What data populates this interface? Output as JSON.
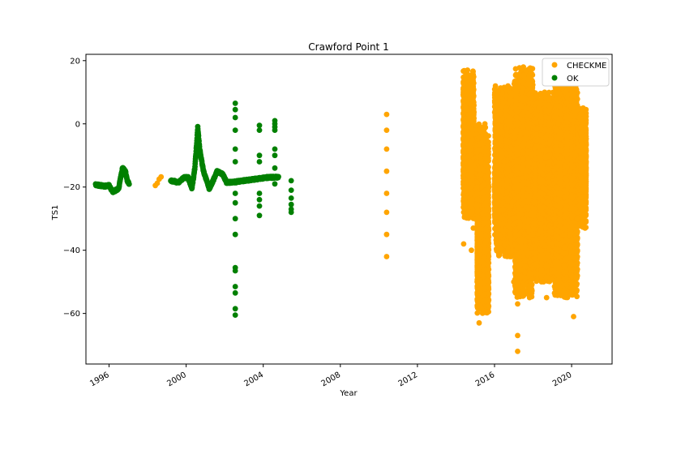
{
  "chart_data": {
    "type": "scatter",
    "title": "Crawford Point 1",
    "xlabel": "Year",
    "ylabel": "TS1",
    "xlim": [
      1994.8,
      2022.1
    ],
    "ylim": [
      -76,
      22
    ],
    "x_ticks": [
      1996,
      2000,
      2004,
      2008,
      2012,
      2016,
      2020
    ],
    "y_ticks": [
      20,
      0,
      -20,
      -40,
      -60
    ],
    "grid": false,
    "legend_position": "top-right",
    "series": [
      {
        "name": "CHECKME",
        "color": "#ffa500",
        "points": [
          [
            1998.4,
            -19.5
          ],
          [
            1998.5,
            -18.8
          ],
          [
            1998.6,
            -17.5
          ],
          [
            1998.7,
            -16.8
          ],
          [
            2010.4,
            3
          ],
          [
            2010.4,
            -2
          ],
          [
            2010.4,
            -8
          ],
          [
            2010.4,
            -15
          ],
          [
            2010.4,
            -22
          ],
          [
            2010.4,
            -28
          ],
          [
            2010.4,
            -35
          ],
          [
            2010.4,
            -42
          ],
          [
            2014.4,
            -38
          ],
          [
            2014.4,
            -28
          ],
          [
            2014.4,
            -15
          ],
          [
            2014.5,
            15
          ],
          [
            2014.5,
            5
          ],
          [
            2014.6,
            17
          ],
          [
            2014.6,
            -5
          ],
          [
            2014.7,
            12
          ],
          [
            2014.7,
            -25
          ],
          [
            2014.8,
            8
          ],
          [
            2014.8,
            -40
          ],
          [
            2014.9,
            -33
          ],
          [
            2014.9,
            0
          ],
          [
            2015.1,
            -50
          ],
          [
            2015.2,
            -63
          ],
          [
            2015.2,
            -35
          ],
          [
            2015.3,
            -12
          ],
          [
            2015.4,
            -5
          ],
          [
            2015.4,
            -48
          ],
          [
            2015.5,
            0
          ],
          [
            2015.5,
            -30
          ],
          [
            2015.6,
            -40
          ],
          [
            2015.7,
            -20
          ],
          [
            2016.0,
            -20
          ],
          [
            2016.2,
            -32
          ],
          [
            2016.3,
            -5
          ],
          [
            2016.4,
            -30
          ],
          [
            2016.5,
            -12
          ],
          [
            2016.6,
            5
          ],
          [
            2016.6,
            -38
          ],
          [
            2016.7,
            12
          ],
          [
            2016.8,
            -42
          ],
          [
            2016.9,
            -25
          ],
          [
            2017.0,
            -50
          ],
          [
            2017.1,
            -35
          ],
          [
            2017.2,
            -57
          ],
          [
            2017.2,
            -67
          ],
          [
            2017.2,
            -72
          ],
          [
            2017.3,
            -5
          ],
          [
            2017.3,
            -45
          ],
          [
            2017.4,
            10
          ],
          [
            2017.5,
            18
          ],
          [
            2017.5,
            -30
          ],
          [
            2017.6,
            5
          ],
          [
            2017.7,
            -40
          ],
          [
            2017.8,
            -48
          ],
          [
            2017.9,
            -10
          ],
          [
            2018.0,
            -35
          ],
          [
            2018.1,
            -20
          ],
          [
            2018.2,
            -45
          ],
          [
            2018.3,
            5
          ],
          [
            2018.4,
            -30
          ],
          [
            2018.5,
            -38
          ],
          [
            2018.6,
            10
          ],
          [
            2018.7,
            -55
          ],
          [
            2018.7,
            -25
          ],
          [
            2018.8,
            -45
          ],
          [
            2018.9,
            -5
          ],
          [
            2019.0,
            -38
          ],
          [
            2019.1,
            -30
          ],
          [
            2019.2,
            -20
          ],
          [
            2019.3,
            0
          ],
          [
            2019.4,
            12
          ],
          [
            2019.5,
            17
          ],
          [
            2019.5,
            -25
          ],
          [
            2019.6,
            -41
          ],
          [
            2019.7,
            10
          ],
          [
            2019.8,
            -20
          ],
          [
            2019.9,
            -35
          ],
          [
            2020.0,
            5
          ],
          [
            2020.1,
            -61
          ],
          [
            2020.2,
            -10
          ],
          [
            2020.3,
            -30
          ],
          [
            2020.4,
            2
          ],
          [
            2020.5,
            -25
          ],
          [
            2020.6,
            5
          ],
          [
            2020.7,
            -33
          ]
        ],
        "bands": [
          [
            2014.38,
            2014.95,
            -30,
            17
          ],
          [
            2015.1,
            2015.7,
            -60,
            0
          ],
          [
            2016.0,
            2016.98,
            -42,
            12
          ],
          [
            2017.0,
            2018.0,
            -55,
            18
          ],
          [
            2018.0,
            2019.1,
            -50,
            10
          ],
          [
            2019.1,
            2020.3,
            -55,
            17
          ],
          [
            2020.3,
            2020.75,
            -33,
            5
          ]
        ]
      },
      {
        "name": "OK",
        "color": "#008000",
        "points": [
          [
            2002.55,
            6.5
          ],
          [
            2002.55,
            4.5
          ],
          [
            2002.55,
            2
          ],
          [
            2002.55,
            -2
          ],
          [
            2002.55,
            -8
          ],
          [
            2002.55,
            -12
          ],
          [
            2002.55,
            -22
          ],
          [
            2002.55,
            -25
          ],
          [
            2002.55,
            -30
          ],
          [
            2002.55,
            -35
          ],
          [
            2002.55,
            -45.5
          ],
          [
            2002.55,
            -46.5
          ],
          [
            2002.55,
            -51.5
          ],
          [
            2002.55,
            -53.5
          ],
          [
            2002.55,
            -58.5
          ],
          [
            2002.55,
            -60.5
          ],
          [
            2003.8,
            -0.5
          ],
          [
            2003.8,
            -2
          ],
          [
            2003.8,
            -10
          ],
          [
            2003.8,
            -12
          ],
          [
            2003.8,
            -22
          ],
          [
            2003.8,
            -24
          ],
          [
            2003.8,
            -26
          ],
          [
            2003.8,
            -29
          ],
          [
            2004.6,
            1
          ],
          [
            2004.6,
            0
          ],
          [
            2004.6,
            -1
          ],
          [
            2004.6,
            -2
          ],
          [
            2004.6,
            -8
          ],
          [
            2004.6,
            -10
          ],
          [
            2004.6,
            -14
          ],
          [
            2004.6,
            -19
          ],
          [
            2005.45,
            -18
          ],
          [
            2005.45,
            -21
          ],
          [
            2005.45,
            -23.5
          ],
          [
            2005.45,
            -25.5
          ],
          [
            2005.45,
            -27
          ],
          [
            2005.45,
            -28
          ]
        ],
        "curves": [
          [
            [
              1995.3,
              -19.3
            ],
            [
              1995.8,
              -19.7
            ],
            [
              1996.0,
              -19.5
            ],
            [
              1996.2,
              -21.5
            ],
            [
              1996.5,
              -20.5
            ],
            [
              1996.6,
              -17
            ],
            [
              1996.7,
              -14
            ],
            [
              1996.85,
              -15
            ],
            [
              1996.95,
              -18
            ],
            [
              1997.05,
              -19
            ]
          ],
          [
            [
              1999.2,
              -18
            ],
            [
              1999.6,
              -18.5
            ],
            [
              1999.9,
              -17
            ],
            [
              2000.1,
              -17
            ],
            [
              2000.3,
              -20.5
            ],
            [
              2000.45,
              -14
            ],
            [
              2000.55,
              -6
            ],
            [
              2000.6,
              -1
            ],
            [
              2000.7,
              -8
            ],
            [
              2000.9,
              -15
            ],
            [
              2001.2,
              -20.5
            ],
            [
              2001.4,
              -18
            ],
            [
              2001.6,
              -15
            ],
            [
              2001.9,
              -16
            ],
            [
              2002.1,
              -18.5
            ],
            [
              2002.4,
              -18.5
            ],
            [
              2003.0,
              -18
            ],
            [
              2003.6,
              -17.5
            ],
            [
              2004.2,
              -17
            ],
            [
              2004.8,
              -16.8
            ]
          ]
        ]
      }
    ]
  }
}
